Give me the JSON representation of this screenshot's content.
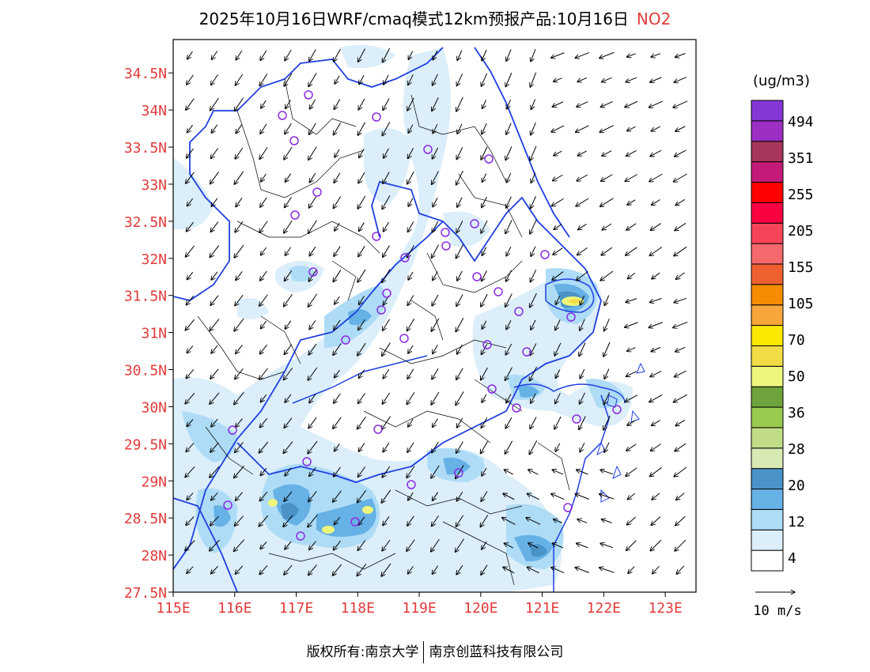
{
  "title": {
    "text": "2025年10月16日WRF/cmaq模式12km预报产品:10月16日",
    "species": "NO2"
  },
  "map": {
    "lat_labels": [
      "34.5N",
      "34N",
      "33.5N",
      "33N",
      "32.5N",
      "32N",
      "31.5N",
      "31N",
      "30.5N",
      "30N",
      "29.5N",
      "29N",
      "28.5N",
      "28N",
      "27.5N"
    ],
    "lon_labels": [
      "115E",
      "116E",
      "117E",
      "118E",
      "119E",
      "120E",
      "121E",
      "122E",
      "123E"
    ],
    "extent": {
      "lon_min": 115,
      "lon_max": 123.5,
      "lat_min": 27.5,
      "lat_max": 34.95
    },
    "axis_label_color": "#e23b3b",
    "boundary_color": "#1f3fe0",
    "wind_arrow_color": "#000000",
    "station_marker_color": "#8a2be2"
  },
  "legend": {
    "unit": "(ug/m3)",
    "labels": [
      "494",
      "351",
      "255",
      "205",
      "155",
      "105",
      "70",
      "50",
      "36",
      "28",
      "20",
      "12",
      "4"
    ],
    "colors": [
      "#ffffff",
      "#dbeefa",
      "#aedcf6",
      "#66b1e6",
      "#4a92c8",
      "#d8e9b4",
      "#c0dd86",
      "#9acb50",
      "#6ea43b",
      "#eef57b",
      "#f1dc46",
      "#fbe800",
      "#f6a63a",
      "#f68c00",
      "#ee6030",
      "#f5686c",
      "#f64558",
      "#fb0040",
      "#ff0000",
      "#c41a7a",
      "#a8355a",
      "#9d2fc4",
      "#8537d6"
    ]
  },
  "vector_legend": {
    "label": "10 m/s"
  },
  "footer": {
    "left": "版权所有:南京大学",
    "right": "南京创蓝科技有限公司"
  }
}
